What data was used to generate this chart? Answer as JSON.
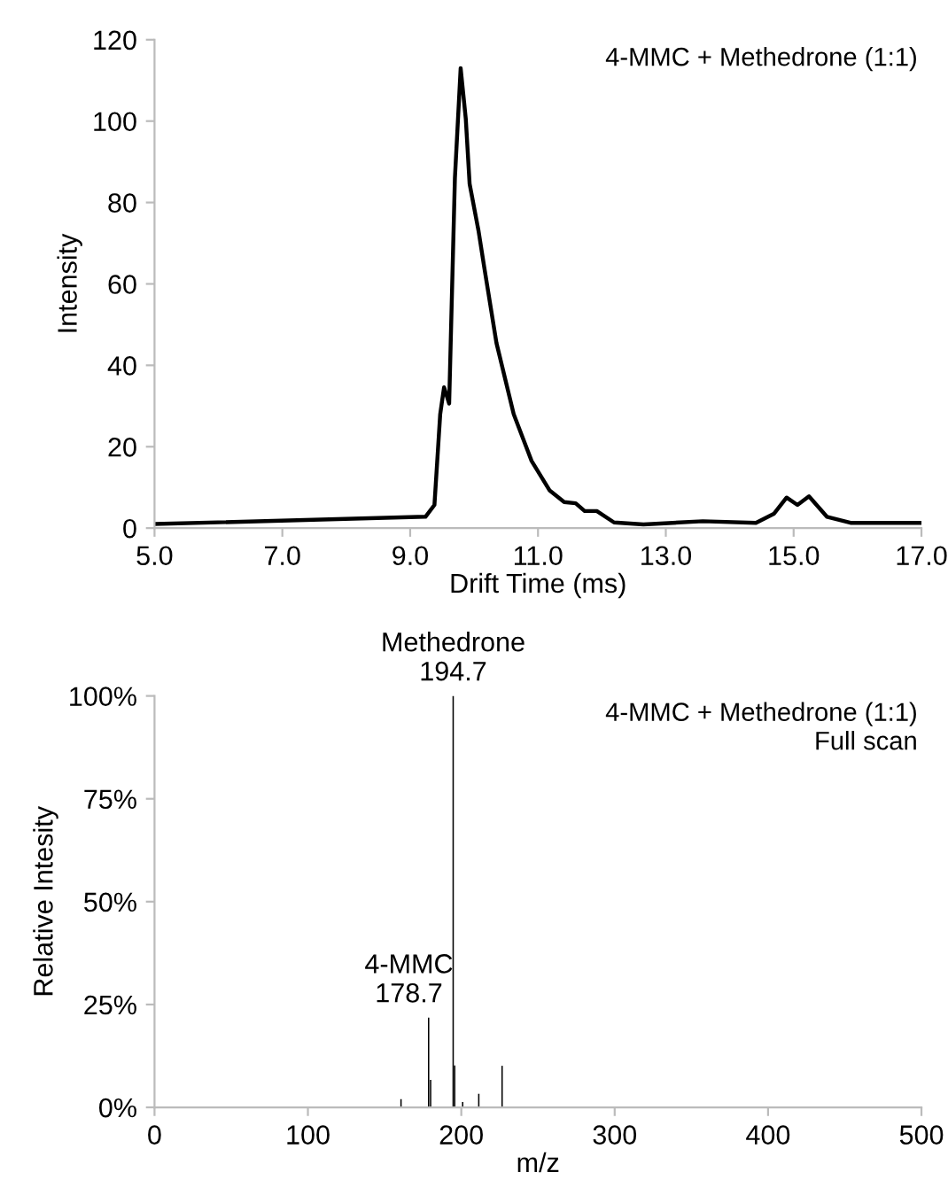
{
  "chart_data": [
    {
      "type": "line",
      "xlabel": "Drift Time (ms)",
      "ylabel": "Intensity",
      "x": [
        5.0,
        9.24,
        9.38,
        9.47,
        9.53,
        9.61,
        9.7,
        9.79,
        9.87,
        9.93,
        10.07,
        10.16,
        10.35,
        10.62,
        10.9,
        11.18,
        11.41,
        11.59,
        11.73,
        11.92,
        12.19,
        12.65,
        13.58,
        14.41,
        14.69,
        14.89,
        15.06,
        15.24,
        15.52,
        15.89,
        17.0
      ],
      "series": [
        {
          "color": "#000000",
          "values": [
            1.0,
            2.8,
            5.7,
            28,
            34.6,
            30.6,
            86,
            113,
            100.6,
            84.6,
            73,
            64,
            45.5,
            28,
            16.5,
            9.3,
            6.4,
            6.1,
            4.2,
            4.2,
            1.4,
            0.9,
            1.7,
            1.3,
            3.5,
            7.5,
            5.7,
            7.8,
            2.8,
            1.3,
            1.3
          ]
        }
      ],
      "xlim": [
        5.0,
        17.0
      ],
      "xticks": [
        {
          "value": 5,
          "label": "5.0"
        },
        {
          "value": 7,
          "label": "7.0"
        },
        {
          "value": 9,
          "label": "9.0"
        },
        {
          "value": 11,
          "label": "11.0"
        },
        {
          "value": 13,
          "label": "13.0"
        },
        {
          "value": 15,
          "label": "15.0"
        },
        {
          "value": 17,
          "label": "17.0"
        }
      ],
      "ylim": [
        0,
        120
      ],
      "yticks": [
        0,
        20,
        40,
        60,
        80,
        100,
        120
      ],
      "annotations": [
        "4-MMC + Methedrone (1:1)"
      ]
    },
    {
      "type": "bar",
      "xlabel": "m/z",
      "ylabel": "Relative Intesity",
      "x": [
        160.7,
        178.7,
        180.0,
        194.7,
        195.7,
        200.9,
        211.4,
        226.6
      ],
      "series": [
        {
          "color": "#000000",
          "values": [
            2,
            21.8,
            6.7,
            100,
            10.2,
            1.3,
            3.3,
            10.1
          ]
        }
      ],
      "xlim": [
        0,
        500
      ],
      "xticks": [
        0,
        100,
        200,
        300,
        400,
        500
      ],
      "ylim": [
        0,
        100
      ],
      "yticks": [
        {
          "value": 0,
          "label": "0%"
        },
        {
          "value": 25,
          "label": "25%"
        },
        {
          "value": 50,
          "label": "50%"
        },
        {
          "value": 75,
          "label": "75%"
        },
        {
          "value": 100,
          "label": "100%"
        }
      ],
      "annotations": [
        "4-MMC + Methedrone (1:1)",
        "Full scan",
        {
          "text": "Methedrone\n194.7",
          "x": 194.7,
          "y": 100
        },
        {
          "text": "4-MMC\n178.7",
          "x": 178.7,
          "y": 21.8
        }
      ]
    }
  ]
}
